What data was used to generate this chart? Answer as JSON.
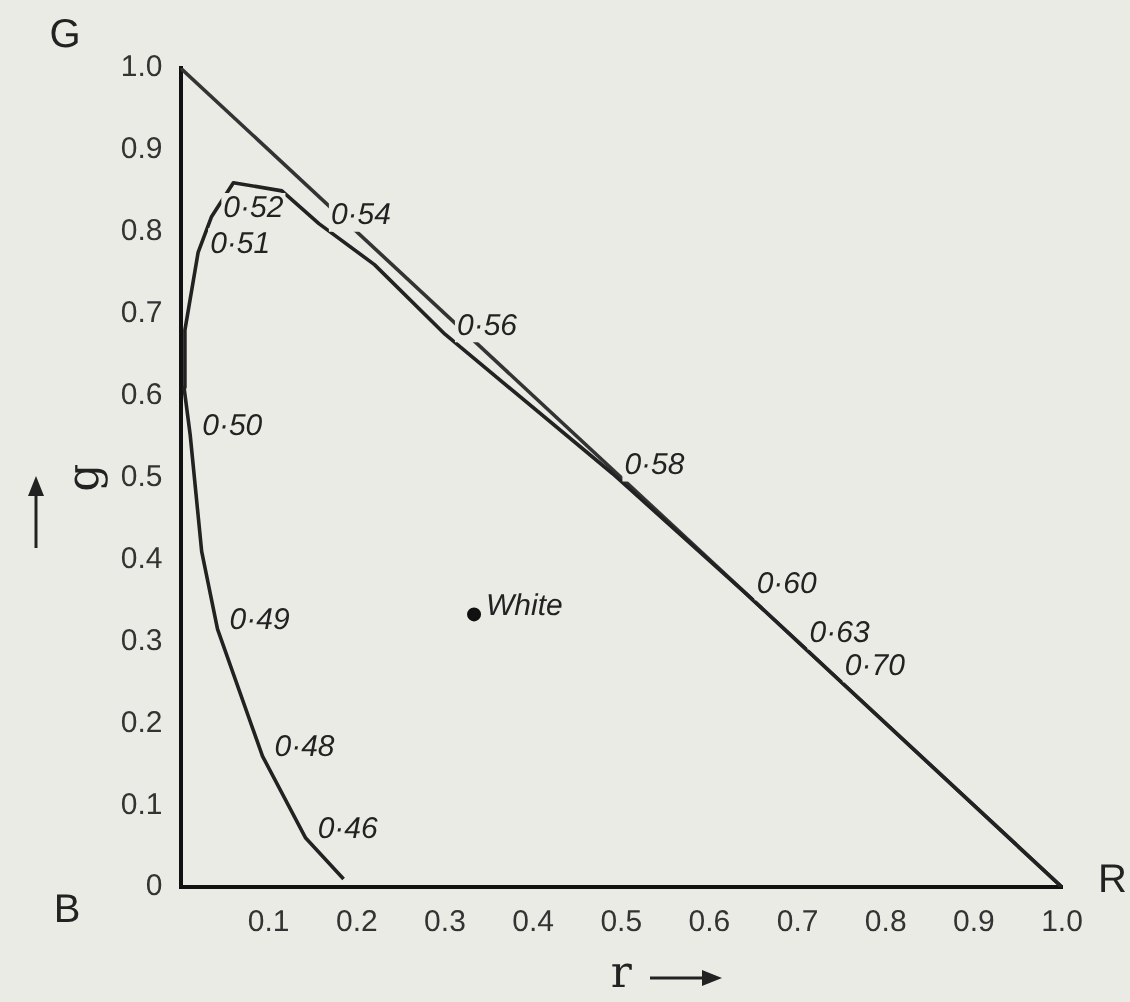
{
  "chart_data": {
    "type": "line",
    "xlabel": "r",
    "ylabel": "g",
    "xlim": [
      0,
      1
    ],
    "ylim": [
      0,
      1
    ],
    "xticks": [
      0.1,
      0.2,
      0.3,
      0.4,
      0.5,
      0.6,
      0.7,
      0.8,
      0.9,
      {
        "value": 1,
        "label": "1.0"
      }
    ],
    "yticks": [
      0,
      0.1,
      0.2,
      0.3,
      0.4,
      0.5,
      0.6,
      0.7,
      0.8,
      0.9,
      {
        "value": 1,
        "label": "1.0"
      }
    ],
    "series": [
      {
        "color": "#222222",
        "x": [
          0.185,
          0.142,
          0.093,
          0.042,
          0.024,
          0.011,
          0.004,
          0.005,
          0.02,
          0.035,
          0.06,
          0.115,
          0.157,
          0.22,
          0.3,
          0.49,
          0.64,
          0.7,
          0.74,
          1.0
        ],
        "values": [
          0.01,
          0.06,
          0.16,
          0.315,
          0.41,
          0.552,
          0.61,
          0.68,
          0.775,
          0.818,
          0.86,
          0.85,
          0.81,
          0.76,
          0.675,
          0.505,
          0.36,
          0.3,
          0.26,
          0
        ]
      },
      {
        "color": "#333333",
        "x": [
          0,
          1
        ],
        "values": [
          1,
          0
        ]
      },
      {
        "type": "scatter",
        "color": "#111111",
        "x": [
          0.333
        ],
        "values": [
          0.333
        ]
      }
    ],
    "annotations": [
      {
        "text": "0·46",
        "x": 0.142,
        "y": 0.06
      },
      {
        "text": "0·48",
        "x": 0.093,
        "y": 0.16
      },
      {
        "text": "0·49",
        "x": 0.042,
        "y": 0.315
      },
      {
        "text": "0·50",
        "x": 0.011,
        "y": 0.552
      },
      {
        "text": "0·51",
        "x": 0.02,
        "y": 0.775
      },
      {
        "text": "0·52",
        "x": 0.035,
        "y": 0.818
      },
      {
        "text": "0·54",
        "x": 0.157,
        "y": 0.81
      },
      {
        "text": "0·56",
        "x": 0.3,
        "y": 0.675
      },
      {
        "text": "0·58",
        "x": 0.49,
        "y": 0.505
      },
      {
        "text": "0·60",
        "x": 0.64,
        "y": 0.36
      },
      {
        "text": "0·63",
        "x": 0.7,
        "y": 0.3
      },
      {
        "text": "0·70",
        "x": 0.74,
        "y": 0.26
      },
      {
        "text": "White",
        "x": 0.333,
        "y": 0.333
      },
      {
        "text": "G",
        "x": 0,
        "y": 1
      },
      "B",
      {
        "text": "R",
        "x": 1,
        "y": 0
      }
    ],
    "grid": false,
    "legend": false
  }
}
